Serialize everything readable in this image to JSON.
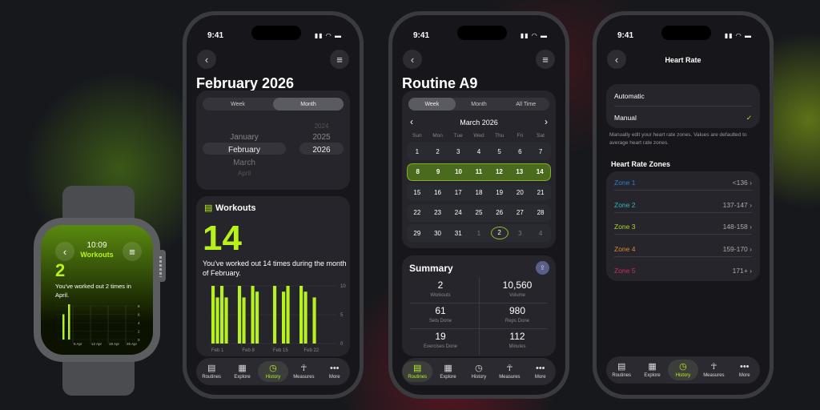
{
  "status": {
    "time": "9:41"
  },
  "tabs": [
    {
      "label": "Routines",
      "icon": "clipboard-icon"
    },
    {
      "label": "Explore",
      "icon": "grid-icon"
    },
    {
      "label": "History",
      "icon": "clock-icon"
    },
    {
      "label": "Measures",
      "icon": "person-icon"
    },
    {
      "label": "More",
      "icon": "ellipsis-icon"
    }
  ],
  "watch": {
    "time": "10:09",
    "title": "Workouts",
    "count": "2",
    "text": "You've worked out 2 times in April.",
    "chart": {
      "type": "bar",
      "values": [
        6,
        9
      ],
      "x_labels": [
        "5 Apr",
        "12 Apr",
        "19 Apr",
        "26 Apr"
      ],
      "y_ticks": [
        "8",
        "6",
        "4",
        "2",
        "0"
      ],
      "ylim": [
        0,
        8
      ]
    }
  },
  "history": {
    "title": "February 2026",
    "segments": [
      "Week",
      "Month"
    ],
    "selected_segment": "Month",
    "months": [
      "January",
      "February",
      "March",
      "April"
    ],
    "selected_month": "February",
    "years": [
      "2024",
      "2025",
      "2026"
    ],
    "selected_year": "2026",
    "workouts_label": "Workouts",
    "count": "14",
    "summary": "You've worked out 14 times during the month of February.",
    "chart_data": {
      "type": "bar",
      "x": "day of February",
      "values": [
        10,
        8,
        10,
        8,
        0,
        0,
        10,
        8,
        0,
        10,
        9,
        0,
        0,
        0,
        10,
        0,
        9,
        10,
        0,
        0,
        10,
        9,
        0,
        8,
        0,
        0,
        0,
        0
      ],
      "x_labels": [
        "Feb 1",
        "Feb 8",
        "Feb 15",
        "Feb 22"
      ],
      "y_ticks": [
        "10",
        "5",
        "0"
      ],
      "ylim": [
        0,
        10
      ],
      "color": "#b8f21c"
    },
    "active_tab": "History"
  },
  "routine": {
    "title": "Routine A9",
    "segments": [
      "Week",
      "Month",
      "All Time"
    ],
    "selected_segment": "Week",
    "month": "March 2026",
    "weekdays": [
      "Sun",
      "Mon",
      "Tue",
      "Wed",
      "Thu",
      "Fri",
      "Sat"
    ],
    "weeks": [
      [
        "1",
        "2",
        "3",
        "4",
        "5",
        "6",
        "7"
      ],
      [
        "8",
        "9",
        "10",
        "11",
        "12",
        "13",
        "14"
      ],
      [
        "15",
        "16",
        "17",
        "18",
        "19",
        "20",
        "21"
      ],
      [
        "22",
        "23",
        "24",
        "25",
        "26",
        "27",
        "28"
      ],
      [
        "29",
        "30",
        "31",
        "1",
        "2",
        "3",
        "4"
      ]
    ],
    "selected_week": 1,
    "today": "2",
    "summary_title": "Summary",
    "stats": [
      {
        "value": "2",
        "label": "Workouts"
      },
      {
        "value": "10,560",
        "label": "Volume"
      },
      {
        "value": "61",
        "label": "Sets Done"
      },
      {
        "value": "980",
        "label": "Reps Done"
      },
      {
        "value": "19",
        "label": "Exercises Done"
      },
      {
        "value": "112",
        "label": "Minutes"
      }
    ],
    "active_tab": "Routines"
  },
  "heart": {
    "title": "Heart Rate",
    "modes": [
      "Automatic",
      "Manual"
    ],
    "selected_mode": "Manual",
    "note": "Manually edit your heart rate zones. Values are defaulted to average heart rate zones.",
    "zones_title": "Heart Rate Zones",
    "zones": [
      {
        "name": "Zone 1",
        "range": "<136",
        "color": "#2a7fd0"
      },
      {
        "name": "Zone 2",
        "range": "137-147",
        "color": "#2ab8c0"
      },
      {
        "name": "Zone 3",
        "range": "148-158",
        "color": "#a8d820"
      },
      {
        "name": "Zone 4",
        "range": "159-170",
        "color": "#d88a30"
      },
      {
        "name": "Zone 5",
        "range": "171+",
        "color": "#d02a60"
      }
    ],
    "active_tab": "History"
  }
}
